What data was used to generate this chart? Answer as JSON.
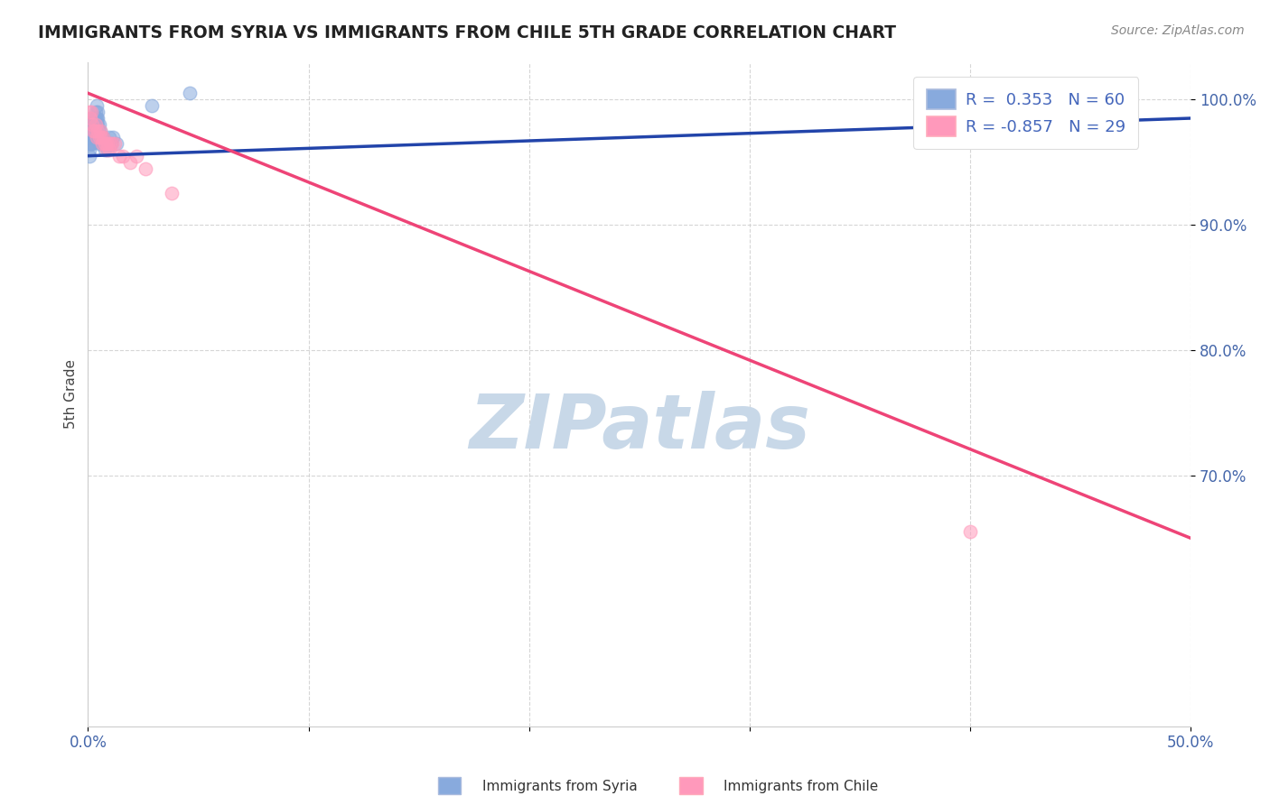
{
  "title": "IMMIGRANTS FROM SYRIA VS IMMIGRANTS FROM CHILE 5TH GRADE CORRELATION CHART",
  "source": "Source: ZipAtlas.com",
  "ylabel": "5th Grade",
  "xlim": [
    0.0,
    50.0
  ],
  "ylim": [
    50.0,
    103.0
  ],
  "x_ticks": [
    0,
    10,
    20,
    30,
    40,
    50
  ],
  "x_tick_labels": [
    "0.0%",
    "",
    "",
    "",
    "",
    "50.0%"
  ],
  "y_ticks": [
    70,
    80,
    90,
    100
  ],
  "y_tick_labels": [
    "70.0%",
    "80.0%",
    "90.0%",
    "100.0%"
  ],
  "legend_r_syria": "0.353",
  "legend_n_syria": "60",
  "legend_r_chile": "-0.857",
  "legend_n_chile": "29",
  "syria_color": "#88AADD",
  "chile_color": "#FF99BB",
  "syria_line_color": "#2244AA",
  "chile_line_color": "#EE4477",
  "watermark": "ZIPatlas",
  "watermark_color": "#C8D8E8",
  "syria_line_x": [
    0.0,
    50.0
  ],
  "syria_line_y": [
    95.5,
    98.5
  ],
  "chile_line_x": [
    0.0,
    50.0
  ],
  "chile_line_y": [
    100.5,
    65.0
  ],
  "syria_points_x": [
    0.05,
    0.08,
    0.1,
    0.12,
    0.15,
    0.18,
    0.2,
    0.22,
    0.25,
    0.28,
    0.3,
    0.32,
    0.35,
    0.38,
    0.4,
    0.42,
    0.45,
    0.48,
    0.5,
    0.55,
    0.06,
    0.09,
    0.11,
    0.14,
    0.16,
    0.19,
    0.21,
    0.24,
    0.26,
    0.29,
    0.31,
    0.34,
    0.36,
    0.39,
    0.41,
    0.44,
    0.07,
    0.13,
    0.17,
    0.23,
    0.27,
    0.33,
    0.37,
    0.43,
    0.46,
    0.52,
    0.58,
    0.62,
    0.68,
    0.72,
    0.78,
    0.82,
    0.88,
    0.92,
    0.98,
    1.05,
    1.15,
    1.3,
    2.9,
    4.6
  ],
  "syria_points_y": [
    96.5,
    97.0,
    97.5,
    98.0,
    98.5,
    97.5,
    98.0,
    97.0,
    97.5,
    98.0,
    97.5,
    98.5,
    99.0,
    98.5,
    99.5,
    98.0,
    99.0,
    97.5,
    98.0,
    97.5,
    96.0,
    96.5,
    97.0,
    97.5,
    97.0,
    96.5,
    97.5,
    97.0,
    97.5,
    98.0,
    97.5,
    98.0,
    98.5,
    98.0,
    97.5,
    98.5,
    95.5,
    96.5,
    97.0,
    97.5,
    97.0,
    97.5,
    98.0,
    97.5,
    97.0,
    96.5,
    97.0,
    96.5,
    97.0,
    96.5,
    96.0,
    96.5,
    96.0,
    96.5,
    97.0,
    96.5,
    97.0,
    96.5,
    99.5,
    100.5
  ],
  "chile_points_x": [
    0.05,
    0.1,
    0.15,
    0.2,
    0.25,
    0.3,
    0.35,
    0.4,
    0.45,
    0.5,
    0.55,
    0.6,
    0.65,
    0.7,
    0.75,
    0.8,
    0.85,
    0.9,
    0.95,
    1.0,
    1.1,
    1.2,
    1.4,
    1.6,
    1.9,
    2.2,
    2.6,
    3.8,
    40.0
  ],
  "chile_points_y": [
    99.0,
    98.5,
    99.0,
    98.0,
    97.5,
    97.5,
    98.0,
    97.0,
    97.5,
    97.0,
    97.5,
    97.0,
    96.5,
    97.0,
    96.5,
    96.5,
    96.0,
    96.5,
    96.0,
    96.5,
    96.5,
    96.5,
    95.5,
    95.5,
    95.0,
    95.5,
    94.5,
    92.5,
    65.5
  ]
}
